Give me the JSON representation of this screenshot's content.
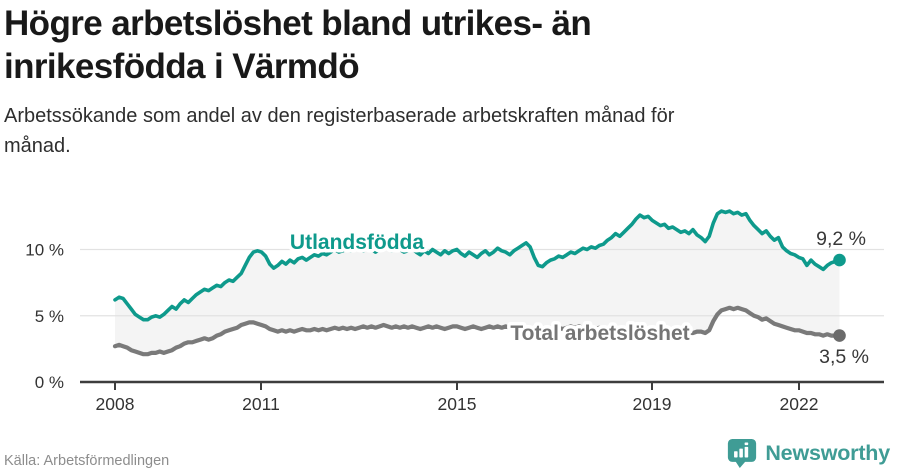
{
  "header": {
    "title": "Högre arbetslöshet bland utrikes- än inrikesfödda i Värmdö",
    "subtitle": "Arbetssökande som andel av den registerbaserade arbetskraften månad för månad."
  },
  "footer": {
    "source": "Källa: Arbetsförmedlingen",
    "brand": "Newsworthy"
  },
  "colors": {
    "accent_teal": "#0e9a8c",
    "series_gray": "#7a7a7a",
    "end_dot_gray": "#6b6b6b",
    "brand_teal": "#3f9c95",
    "band_fill": "#f4f4f4",
    "gridline": "#e2e2e2",
    "axis": "#3d3d3d"
  },
  "chart_data": {
    "type": "line",
    "x_unit": "month",
    "x_range": [
      "2008-01",
      "2022-11"
    ],
    "ylim": [
      0,
      14
    ],
    "grid": "horizontal",
    "legend_position": "inline-labels",
    "y_ticks": [
      "0 %",
      "5 %",
      "10 %"
    ],
    "x_ticks": [
      "2008",
      "2011",
      "2015",
      "2019",
      "2022"
    ],
    "series": [
      {
        "name": "Utlandsfödda",
        "color": "#0e9a8c",
        "end_label": "9,2 %",
        "end_value": 9.2,
        "values": [
          6.2,
          6.4,
          6.3,
          5.9,
          5.5,
          5.1,
          4.9,
          4.7,
          4.7,
          4.9,
          5.0,
          4.9,
          5.1,
          5.4,
          5.7,
          5.5,
          5.9,
          6.2,
          6.0,
          6.3,
          6.6,
          6.8,
          7.0,
          6.9,
          7.1,
          7.3,
          7.2,
          7.5,
          7.7,
          7.6,
          7.9,
          8.2,
          8.8,
          9.4,
          9.8,
          9.9,
          9.8,
          9.5,
          8.9,
          8.6,
          8.8,
          9.1,
          8.9,
          9.2,
          9.0,
          9.3,
          9.4,
          9.2,
          9.4,
          9.6,
          9.5,
          9.7,
          9.6,
          9.8,
          10.0,
          9.8,
          9.9,
          10.1,
          9.9,
          10.0,
          10.1,
          9.9,
          10.2,
          10.0,
          9.8,
          10.0,
          10.2,
          10.1,
          9.9,
          10.1,
          10.0,
          9.8,
          9.9,
          10.1,
          9.8,
          9.6,
          9.9,
          9.7,
          10.0,
          9.8,
          9.6,
          9.9,
          9.7,
          9.9,
          10.0,
          9.7,
          9.5,
          9.8,
          9.6,
          9.4,
          9.7,
          9.9,
          9.6,
          9.8,
          10.1,
          9.9,
          9.8,
          9.6,
          9.9,
          10.1,
          10.3,
          10.5,
          10.2,
          9.4,
          8.8,
          8.7,
          9.0,
          9.2,
          9.3,
          9.5,
          9.4,
          9.6,
          9.8,
          9.7,
          9.9,
          10.1,
          10.0,
          10.2,
          10.1,
          10.3,
          10.4,
          10.7,
          10.9,
          11.2,
          11.0,
          11.3,
          11.6,
          11.9,
          12.3,
          12.6,
          12.4,
          12.5,
          12.2,
          12.0,
          11.8,
          11.9,
          11.6,
          11.7,
          11.5,
          11.3,
          11.4,
          11.2,
          11.5,
          11.1,
          10.9,
          10.6,
          11.0,
          12.0,
          12.7,
          12.9,
          12.8,
          12.9,
          12.7,
          12.8,
          12.6,
          12.7,
          12.2,
          11.8,
          11.5,
          11.2,
          11.4,
          11.0,
          10.7,
          10.9,
          10.2,
          9.9,
          9.7,
          9.6,
          9.4,
          9.3,
          8.8,
          9.2,
          8.9,
          8.7,
          8.5,
          8.8,
          9.0,
          9.1,
          9.2
        ]
      },
      {
        "name": "Total arbetslöshet",
        "color": "#7a7a7a",
        "end_label": "3,5 %",
        "end_value": 3.5,
        "values": [
          2.7,
          2.8,
          2.7,
          2.6,
          2.4,
          2.3,
          2.2,
          2.1,
          2.1,
          2.2,
          2.2,
          2.3,
          2.2,
          2.3,
          2.4,
          2.6,
          2.7,
          2.9,
          3.0,
          3.0,
          3.1,
          3.2,
          3.3,
          3.2,
          3.3,
          3.5,
          3.6,
          3.8,
          3.9,
          4.0,
          4.1,
          4.3,
          4.4,
          4.5,
          4.5,
          4.4,
          4.3,
          4.2,
          4.0,
          3.9,
          3.8,
          3.9,
          3.8,
          3.9,
          3.8,
          3.9,
          4.0,
          3.9,
          3.9,
          4.0,
          3.9,
          4.0,
          3.9,
          4.0,
          4.1,
          4.0,
          4.1,
          4.0,
          4.1,
          4.0,
          4.1,
          4.2,
          4.1,
          4.2,
          4.1,
          4.2,
          4.3,
          4.2,
          4.1,
          4.2,
          4.1,
          4.2,
          4.1,
          4.2,
          4.1,
          4.0,
          4.1,
          4.2,
          4.1,
          4.2,
          4.1,
          4.0,
          4.1,
          4.2,
          4.2,
          4.1,
          4.0,
          4.1,
          4.2,
          4.1,
          4.0,
          4.1,
          4.2,
          4.1,
          4.2,
          4.1,
          4.2,
          4.1,
          4.2,
          4.1,
          4.0,
          4.1,
          4.0,
          3.9,
          4.0,
          4.1,
          4.0,
          4.1,
          4.0,
          4.1,
          4.0,
          4.1,
          4.2,
          4.1,
          4.2,
          4.1,
          4.0,
          4.1,
          4.0,
          4.1,
          4.0,
          3.9,
          4.0,
          3.9,
          3.8,
          3.9,
          3.8,
          3.9,
          3.8,
          3.9,
          3.8,
          3.9,
          3.8,
          3.9,
          3.8,
          3.7,
          3.8,
          3.7,
          3.8,
          3.7,
          3.6,
          3.7,
          3.7,
          3.8,
          3.8,
          3.7,
          3.9,
          4.6,
          5.1,
          5.4,
          5.5,
          5.6,
          5.5,
          5.6,
          5.5,
          5.4,
          5.2,
          5.0,
          4.9,
          4.7,
          4.8,
          4.6,
          4.4,
          4.3,
          4.2,
          4.1,
          4.0,
          3.9,
          3.9,
          3.8,
          3.7,
          3.7,
          3.6,
          3.6,
          3.5,
          3.6,
          3.5,
          3.5,
          3.5
        ]
      }
    ]
  }
}
